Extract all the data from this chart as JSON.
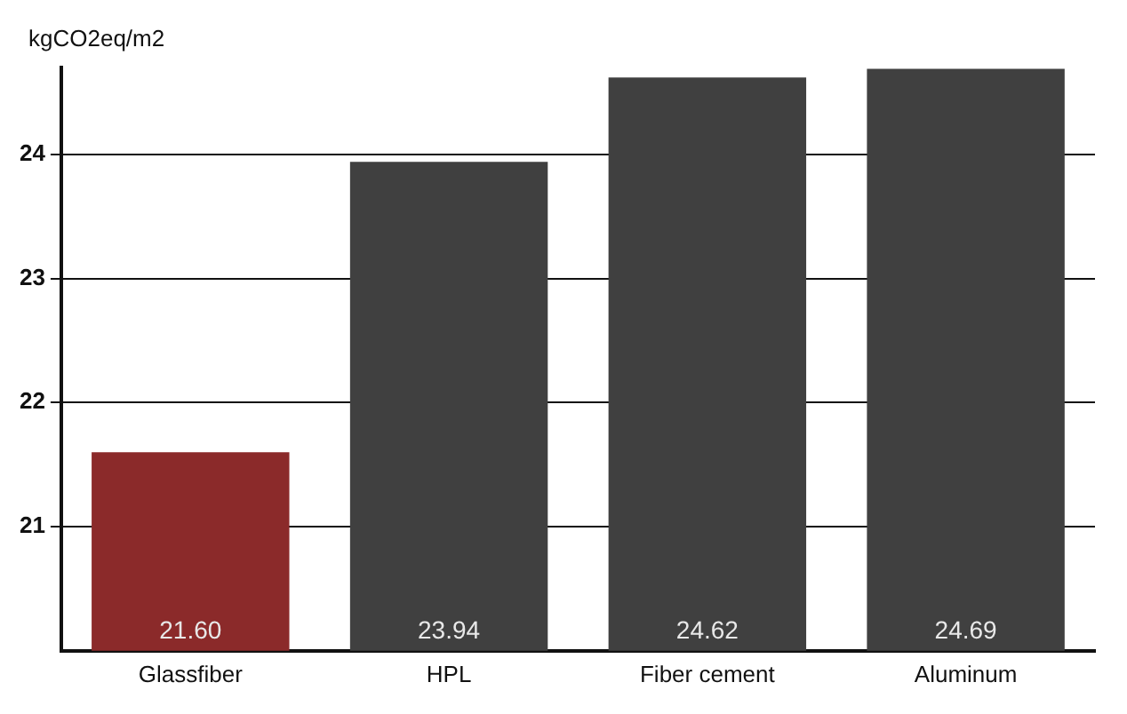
{
  "chart_data": {
    "type": "bar",
    "ylabel": "kgCO2eq/m2",
    "categories": [
      "Glassfiber",
      "HPL",
      "Fiber cement",
      "Aluminum"
    ],
    "values": [
      21.6,
      23.94,
      24.62,
      24.69
    ],
    "colors": [
      "#8b2a2a",
      "#404040",
      "#404040",
      "#404040"
    ],
    "value_labels": [
      "21.60",
      "23.94",
      "24.62",
      "24.69"
    ],
    "ylim": [
      20,
      24.7
    ],
    "yticks": [
      21,
      22,
      23,
      24
    ],
    "grid": "y",
    "legend": false
  }
}
